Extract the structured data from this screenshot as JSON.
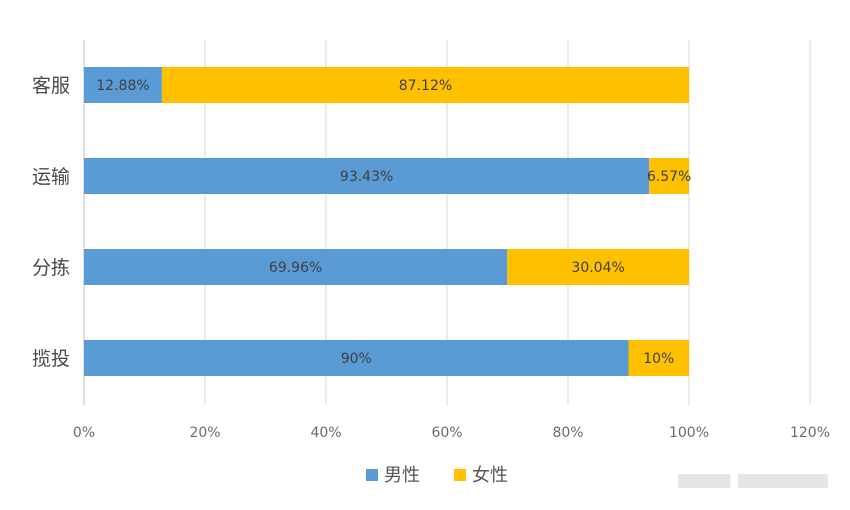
{
  "chart_data": {
    "type": "bar",
    "orientation": "horizontal",
    "stacked": true,
    "categories": [
      "客服",
      "运输",
      "分拣",
      "揽投"
    ],
    "series": [
      {
        "name": "男性",
        "values": [
          12.88,
          93.43,
          69.96,
          90
        ],
        "labels": [
          "12.88%",
          "93.43%",
          "69.96%",
          "90%"
        ],
        "color": "#5b9bd5"
      },
      {
        "name": "女性",
        "values": [
          87.12,
          6.57,
          30.04,
          10
        ],
        "labels": [
          "87.12%",
          "6.57%",
          "30.04%",
          "10%"
        ],
        "color": "#ffc000"
      }
    ],
    "xlim": [
      0,
      120
    ],
    "xticks": [
      0,
      20,
      40,
      60,
      80,
      100,
      120
    ],
    "xtick_labels": [
      "0%",
      "20%",
      "40%",
      "60%",
      "80%",
      "100%",
      "120%"
    ],
    "grid": true,
    "legend_position": "bottom"
  },
  "colors": {
    "grid": "#d9d9d9",
    "axis": "#bfbfbf"
  }
}
